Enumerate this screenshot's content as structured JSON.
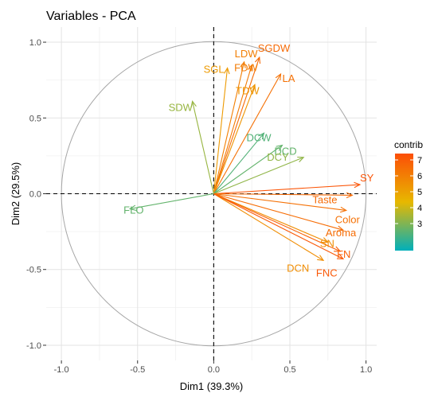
{
  "chart_data": {
    "type": "scatter",
    "title": "Variables - PCA",
    "xlabel": "Dim1 (39.3%)",
    "ylabel": "Dim2 (29.5%)",
    "xlim": [
      -1.1,
      1.07
    ],
    "ylim": [
      -1.1,
      1.1
    ],
    "xticks": [
      -1.0,
      -0.5,
      0.0,
      0.5,
      1.0
    ],
    "yticks": [
      -1.0,
      -0.5,
      0.0,
      0.5,
      1.0
    ],
    "x_tick_labels": [
      "-1.0",
      "-0.5",
      "0.0",
      "0.5",
      "1.0"
    ],
    "y_tick_labels": [
      "-1.0",
      "-0.5",
      "0.0",
      "0.5",
      "1.0"
    ],
    "grid": true,
    "correlation_circle": true,
    "legend": {
      "title": "contrib",
      "position": "right",
      "min": 1.3,
      "max": 7.4,
      "ticks": [
        3,
        4,
        5,
        6,
        7
      ],
      "tick_labels": [
        "3",
        "4",
        "5",
        "6",
        "7"
      ],
      "colors": [
        "#00AFBB",
        "#E7B800",
        "#FC4E07"
      ]
    },
    "variables": [
      {
        "name": "LDW",
        "x": 0.2,
        "y": 0.87,
        "contrib": 6.0
      },
      {
        "name": "SGDW",
        "x": 0.3,
        "y": 0.9,
        "contrib": 6.6
      },
      {
        "name": "SGL",
        "x": 0.09,
        "y": 0.83,
        "contrib": 5.2
      },
      {
        "name": "FDW",
        "x": 0.25,
        "y": 0.85,
        "contrib": 6.1
      },
      {
        "name": "TDW",
        "x": 0.27,
        "y": 0.72,
        "contrib": 5.4
      },
      {
        "name": "LA",
        "x": 0.44,
        "y": 0.79,
        "contrib": 6.4
      },
      {
        "name": "SDW",
        "x": -0.14,
        "y": 0.61,
        "contrib": 3.3
      },
      {
        "name": "DCW",
        "x": 0.33,
        "y": 0.4,
        "contrib": 2.4
      },
      {
        "name": "DCD",
        "x": 0.45,
        "y": 0.32,
        "contrib": 2.6
      },
      {
        "name": "DCY",
        "x": 0.59,
        "y": 0.24,
        "contrib": 3.2
      },
      {
        "name": "SY",
        "x": 0.96,
        "y": 0.06,
        "contrib": 7.2
      },
      {
        "name": "Taste",
        "x": 0.91,
        "y": -0.01,
        "contrib": 6.6
      },
      {
        "name": "Color",
        "x": 0.87,
        "y": -0.11,
        "contrib": 6.4
      },
      {
        "name": "Aroma",
        "x": 0.85,
        "y": -0.24,
        "contrib": 6.5
      },
      {
        "name": "SN",
        "x": 0.75,
        "y": -0.32,
        "contrib": 5.6
      },
      {
        "name": "FN",
        "x": 0.83,
        "y": -0.38,
        "contrib": 6.9
      },
      {
        "name": "DCN",
        "x": 0.72,
        "y": -0.44,
        "contrib": 5.6
      },
      {
        "name": "FNC",
        "x": 0.85,
        "y": -0.43,
        "contrib": 7.1
      },
      {
        "name": "FLO",
        "x": -0.55,
        "y": -0.1,
        "contrib": 2.6
      }
    ]
  }
}
